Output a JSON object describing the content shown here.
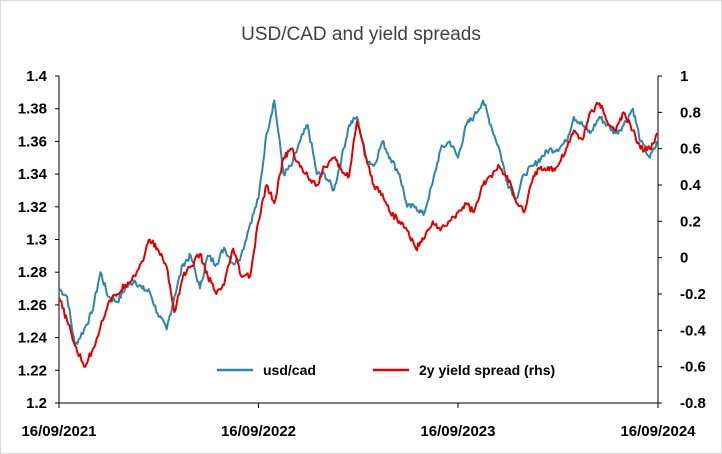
{
  "chart_data": {
    "type": "line",
    "title": "USD/CAD and yield spreads",
    "xlabel": "",
    "ylabel": "",
    "x_ticks": [
      "16/09/2021",
      "16/09/2022",
      "16/09/2023",
      "16/09/2024"
    ],
    "x_range": [
      "16/09/2021",
      "16/09/2024"
    ],
    "ylim": [
      1.2,
      1.4
    ],
    "y_ticks": [
      "1.2",
      "1.22",
      "1.24",
      "1.26",
      "1.28",
      "1.3",
      "1.32",
      "1.34",
      "1.36",
      "1.38",
      "1.4"
    ],
    "y2lim": [
      -0.8,
      1.0
    ],
    "y2_ticks": [
      "-0.8",
      "-0.6",
      "-0.4",
      "-0.2",
      "0",
      "0.2",
      "0.4",
      "0.6",
      "0.8",
      "1"
    ],
    "grid": false,
    "legend_position": "bottom-center",
    "series": [
      {
        "name": "usd/cad",
        "axis": "left",
        "color": "#2e86ab",
        "points": [
          [
            "16/09/2021",
            1.27
          ],
          [
            "01/10/2021",
            1.265
          ],
          [
            "15/10/2021",
            1.235
          ],
          [
            "01/11/2021",
            1.245
          ],
          [
            "15/11/2021",
            1.255
          ],
          [
            "01/12/2021",
            1.28
          ],
          [
            "15/12/2021",
            1.265
          ],
          [
            "01/01/2022",
            1.262
          ],
          [
            "15/01/2022",
            1.27
          ],
          [
            "01/02/2022",
            1.275
          ],
          [
            "15/02/2022",
            1.27
          ],
          [
            "01/03/2022",
            1.268
          ],
          [
            "15/03/2022",
            1.255
          ],
          [
            "01/04/2022",
            1.245
          ],
          [
            "15/04/2022",
            1.265
          ],
          [
            "01/05/2022",
            1.285
          ],
          [
            "15/05/2022",
            1.29
          ],
          [
            "01/06/2022",
            1.27
          ],
          [
            "15/06/2022",
            1.29
          ],
          [
            "01/07/2022",
            1.285
          ],
          [
            "15/07/2022",
            1.295
          ],
          [
            "01/08/2022",
            1.285
          ],
          [
            "15/08/2022",
            1.29
          ],
          [
            "01/09/2022",
            1.31
          ],
          [
            "16/09/2022",
            1.325
          ],
          [
            "01/10/2022",
            1.365
          ],
          [
            "15/10/2022",
            1.385
          ],
          [
            "01/11/2022",
            1.34
          ],
          [
            "15/11/2022",
            1.345
          ],
          [
            "01/12/2022",
            1.36
          ],
          [
            "15/12/2022",
            1.37
          ],
          [
            "01/01/2023",
            1.34
          ],
          [
            "15/01/2023",
            1.34
          ],
          [
            "01/02/2023",
            1.33
          ],
          [
            "15/02/2023",
            1.35
          ],
          [
            "01/03/2023",
            1.37
          ],
          [
            "15/03/2023",
            1.375
          ],
          [
            "01/04/2023",
            1.35
          ],
          [
            "15/04/2023",
            1.345
          ],
          [
            "01/05/2023",
            1.36
          ],
          [
            "15/05/2023",
            1.35
          ],
          [
            "01/06/2023",
            1.34
          ],
          [
            "15/06/2023",
            1.32
          ],
          [
            "01/07/2023",
            1.32
          ],
          [
            "15/07/2023",
            1.315
          ],
          [
            "01/08/2023",
            1.335
          ],
          [
            "15/08/2023",
            1.355
          ],
          [
            "01/09/2023",
            1.36
          ],
          [
            "16/09/2023",
            1.35
          ],
          [
            "01/10/2023",
            1.37
          ],
          [
            "15/10/2023",
            1.375
          ],
          [
            "01/11/2023",
            1.385
          ],
          [
            "15/11/2023",
            1.37
          ],
          [
            "01/12/2023",
            1.355
          ],
          [
            "15/12/2023",
            1.335
          ],
          [
            "01/01/2024",
            1.325
          ],
          [
            "15/01/2024",
            1.34
          ],
          [
            "01/02/2024",
            1.345
          ],
          [
            "15/02/2024",
            1.35
          ],
          [
            "01/03/2024",
            1.355
          ],
          [
            "15/03/2024",
            1.355
          ],
          [
            "01/04/2024",
            1.36
          ],
          [
            "15/04/2024",
            1.375
          ],
          [
            "01/05/2024",
            1.37
          ],
          [
            "15/05/2024",
            1.365
          ],
          [
            "01/06/2024",
            1.375
          ],
          [
            "15/06/2024",
            1.37
          ],
          [
            "01/07/2024",
            1.365
          ],
          [
            "15/07/2024",
            1.37
          ],
          [
            "01/08/2024",
            1.38
          ],
          [
            "15/08/2024",
            1.36
          ],
          [
            "01/09/2024",
            1.35
          ],
          [
            "16/09/2024",
            1.36
          ]
        ]
      },
      {
        "name": "2y yield spread (rhs)",
        "axis": "right",
        "color": "#e00000",
        "points": [
          [
            "16/09/2021",
            -0.22
          ],
          [
            "01/10/2021",
            -0.35
          ],
          [
            "15/10/2021",
            -0.48
          ],
          [
            "01/11/2021",
            -0.6
          ],
          [
            "15/11/2021",
            -0.52
          ],
          [
            "01/12/2021",
            -0.38
          ],
          [
            "15/12/2021",
            -0.25
          ],
          [
            "01/01/2022",
            -0.2
          ],
          [
            "15/01/2022",
            -0.15
          ],
          [
            "01/02/2022",
            -0.1
          ],
          [
            "15/02/2022",
            -0.02
          ],
          [
            "01/03/2022",
            0.1
          ],
          [
            "15/03/2022",
            0.05
          ],
          [
            "01/04/2022",
            -0.05
          ],
          [
            "15/04/2022",
            -0.3
          ],
          [
            "01/05/2022",
            -0.1
          ],
          [
            "15/05/2022",
            -0.05
          ],
          [
            "01/06/2022",
            0.02
          ],
          [
            "15/06/2022",
            -0.1
          ],
          [
            "01/07/2022",
            -0.2
          ],
          [
            "15/07/2022",
            -0.15
          ],
          [
            "01/08/2022",
            0.05
          ],
          [
            "15/08/2022",
            -0.1
          ],
          [
            "01/09/2022",
            -0.1
          ],
          [
            "16/09/2022",
            0.2
          ],
          [
            "01/10/2022",
            0.4
          ],
          [
            "15/10/2022",
            0.3
          ],
          [
            "01/11/2022",
            0.55
          ],
          [
            "15/11/2022",
            0.6
          ],
          [
            "01/12/2022",
            0.5
          ],
          [
            "15/12/2022",
            0.45
          ],
          [
            "01/01/2023",
            0.4
          ],
          [
            "15/01/2023",
            0.5
          ],
          [
            "01/02/2023",
            0.55
          ],
          [
            "15/02/2023",
            0.48
          ],
          [
            "01/03/2023",
            0.45
          ],
          [
            "15/03/2023",
            0.75
          ],
          [
            "01/04/2023",
            0.55
          ],
          [
            "15/04/2023",
            0.4
          ],
          [
            "01/05/2023",
            0.35
          ],
          [
            "15/05/2023",
            0.25
          ],
          [
            "01/06/2023",
            0.2
          ],
          [
            "15/06/2023",
            0.15
          ],
          [
            "01/07/2023",
            0.05
          ],
          [
            "15/07/2023",
            0.1
          ],
          [
            "01/08/2023",
            0.2
          ],
          [
            "15/08/2023",
            0.15
          ],
          [
            "01/09/2023",
            0.2
          ],
          [
            "16/09/2023",
            0.25
          ],
          [
            "01/10/2023",
            0.3
          ],
          [
            "15/10/2023",
            0.25
          ],
          [
            "01/11/2023",
            0.4
          ],
          [
            "15/11/2023",
            0.45
          ],
          [
            "01/12/2023",
            0.5
          ],
          [
            "15/12/2023",
            0.45
          ],
          [
            "01/01/2024",
            0.3
          ],
          [
            "15/01/2024",
            0.25
          ],
          [
            "01/02/2024",
            0.45
          ],
          [
            "15/02/2024",
            0.5
          ],
          [
            "01/03/2024",
            0.48
          ],
          [
            "15/03/2024",
            0.5
          ],
          [
            "01/04/2024",
            0.6
          ],
          [
            "15/04/2024",
            0.7
          ],
          [
            "01/05/2024",
            0.65
          ],
          [
            "15/05/2024",
            0.8
          ],
          [
            "01/06/2024",
            0.85
          ],
          [
            "15/06/2024",
            0.75
          ],
          [
            "01/07/2024",
            0.7
          ],
          [
            "15/07/2024",
            0.8
          ],
          [
            "01/08/2024",
            0.7
          ],
          [
            "15/08/2024",
            0.6
          ],
          [
            "01/09/2024",
            0.6
          ],
          [
            "16/09/2024",
            0.68
          ]
        ]
      }
    ]
  }
}
